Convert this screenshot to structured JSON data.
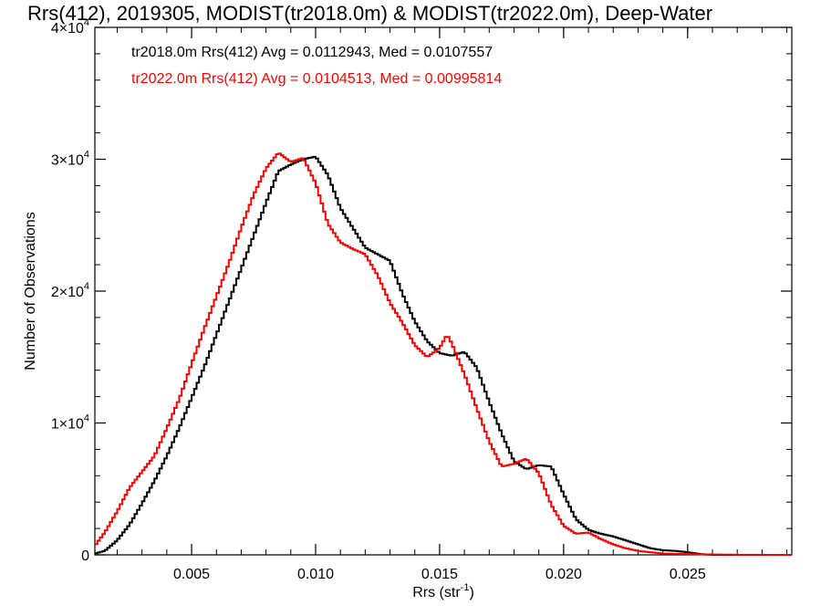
{
  "chart_data": {
    "type": "line",
    "title": "Rrs(412), 2019305, MODIST(tr2018.0m) & MODIST(tr2022.0m), Deep-Water",
    "xlabel": "Rrs (str",
    "xlabel_sup": "-1",
    "xlabel_end": ")",
    "ylabel": "Number of Observations",
    "xlim": [
      0.0011,
      0.0292
    ],
    "ylim": [
      0,
      40000
    ],
    "grid": false,
    "legend_position": "top-left",
    "x_ticks": [
      {
        "value": 0.005,
        "label": "0.005"
      },
      {
        "value": 0.01,
        "label": "0.010"
      },
      {
        "value": 0.015,
        "label": "0.015"
      },
      {
        "value": 0.02,
        "label": "0.020"
      },
      {
        "value": 0.025,
        "label": "0.025"
      }
    ],
    "y_ticks": [
      {
        "value": 0,
        "label": "0",
        "exp": ""
      },
      {
        "value": 10000,
        "label": "1×10",
        "exp": "4"
      },
      {
        "value": 20000,
        "label": "2×10",
        "exp": "4"
      },
      {
        "value": 30000,
        "label": "3×10",
        "exp": "4"
      },
      {
        "value": 40000,
        "label": "4×10",
        "exp": "4"
      }
    ],
    "series": [
      {
        "name": "tr2018.0m",
        "color": "#000000",
        "legend": "tr2018.0m Rrs(412) Avg = 0.0112943, Med = 0.0107557",
        "points": [
          [
            0.0011,
            100
          ],
          [
            0.0015,
            300
          ],
          [
            0.002,
            1100
          ],
          [
            0.0025,
            2300
          ],
          [
            0.003,
            3900
          ],
          [
            0.0035,
            5600
          ],
          [
            0.004,
            7500
          ],
          [
            0.0045,
            9600
          ],
          [
            0.005,
            11900
          ],
          [
            0.0055,
            14200
          ],
          [
            0.006,
            16700
          ],
          [
            0.0065,
            19200
          ],
          [
            0.007,
            21700
          ],
          [
            0.0075,
            24200
          ],
          [
            0.008,
            26700
          ],
          [
            0.0085,
            29100
          ],
          [
            0.009,
            29600
          ],
          [
            0.0095,
            30000
          ],
          [
            0.01,
            30200
          ],
          [
            0.0105,
            28800
          ],
          [
            0.011,
            26300
          ],
          [
            0.0115,
            24800
          ],
          [
            0.012,
            23300
          ],
          [
            0.0125,
            22800
          ],
          [
            0.013,
            22300
          ],
          [
            0.0135,
            19800
          ],
          [
            0.014,
            17700
          ],
          [
            0.0145,
            16200
          ],
          [
            0.015,
            15300
          ],
          [
            0.0155,
            15100
          ],
          [
            0.016,
            15400
          ],
          [
            0.0165,
            14200
          ],
          [
            0.017,
            11600
          ],
          [
            0.0175,
            9200
          ],
          [
            0.018,
            7100
          ],
          [
            0.0185,
            6500
          ],
          [
            0.019,
            6800
          ],
          [
            0.0195,
            6700
          ],
          [
            0.02,
            4600
          ],
          [
            0.0205,
            2700
          ],
          [
            0.021,
            1900
          ],
          [
            0.0215,
            1600
          ],
          [
            0.022,
            1400
          ],
          [
            0.0225,
            1100
          ],
          [
            0.023,
            800
          ],
          [
            0.0235,
            500
          ],
          [
            0.024,
            350
          ],
          [
            0.0245,
            300
          ],
          [
            0.025,
            200
          ],
          [
            0.0255,
            60
          ],
          [
            0.026,
            0
          ],
          [
            0.0292,
            0
          ]
        ]
      },
      {
        "name": "tr2022.0m",
        "color": "#ff0000",
        "legend": "tr2022.0m Rrs(412) Avg = 0.0104513, Med = 0.00995814",
        "points": [
          [
            0.0011,
            700
          ],
          [
            0.0015,
            1700
          ],
          [
            0.002,
            3300
          ],
          [
            0.0025,
            5100
          ],
          [
            0.003,
            6300
          ],
          [
            0.0035,
            7500
          ],
          [
            0.004,
            9600
          ],
          [
            0.0045,
            11800
          ],
          [
            0.005,
            14500
          ],
          [
            0.0055,
            17100
          ],
          [
            0.006,
            19600
          ],
          [
            0.0065,
            22100
          ],
          [
            0.007,
            24800
          ],
          [
            0.0075,
            27300
          ],
          [
            0.008,
            29300
          ],
          [
            0.0085,
            30500
          ],
          [
            0.009,
            29800
          ],
          [
            0.0095,
            30100
          ],
          [
            0.01,
            28200
          ],
          [
            0.0105,
            25100
          ],
          [
            0.011,
            23700
          ],
          [
            0.0115,
            23200
          ],
          [
            0.012,
            22800
          ],
          [
            0.0125,
            21200
          ],
          [
            0.013,
            19100
          ],
          [
            0.0135,
            17600
          ],
          [
            0.014,
            15900
          ],
          [
            0.0145,
            15000
          ],
          [
            0.015,
            15700
          ],
          [
            0.0153,
            16700
          ],
          [
            0.0155,
            16000
          ],
          [
            0.016,
            13700
          ],
          [
            0.0165,
            11100
          ],
          [
            0.017,
            8600
          ],
          [
            0.0175,
            6700
          ],
          [
            0.018,
            6900
          ],
          [
            0.0185,
            7300
          ],
          [
            0.019,
            6200
          ],
          [
            0.0195,
            3800
          ],
          [
            0.02,
            2200
          ],
          [
            0.0205,
            1600
          ],
          [
            0.021,
            1700
          ],
          [
            0.0215,
            1200
          ],
          [
            0.022,
            800
          ],
          [
            0.0225,
            500
          ],
          [
            0.023,
            300
          ],
          [
            0.0235,
            200
          ],
          [
            0.024,
            100
          ],
          [
            0.025,
            60
          ],
          [
            0.026,
            30
          ],
          [
            0.027,
            10
          ],
          [
            0.028,
            5
          ],
          [
            0.0292,
            0
          ]
        ]
      }
    ]
  }
}
